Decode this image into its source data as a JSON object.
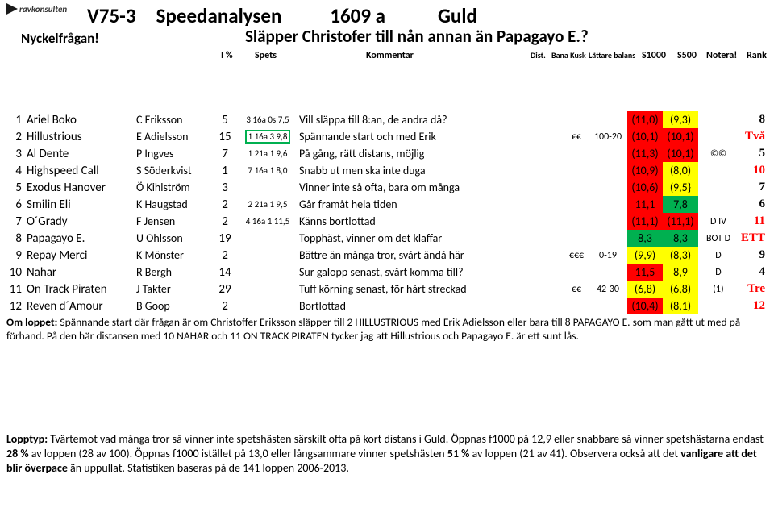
{
  "logo_text": "ravkonsulten",
  "title_race": "V75-3",
  "title_label": "Speedanalysen",
  "title_dist": "1609 a",
  "title_class": "Guld",
  "nyckel": "Nyckelfrågan!",
  "question": "Släpper Christofer till nån annan än Papagayo E.?",
  "cols": {
    "ipc": "I %",
    "spets": "Spets",
    "komm": "Kommentar",
    "dist": "Dist.",
    "bana": "Bana Kusk",
    "latt": "Lättare balans",
    "s1000": "S1000",
    "s500": "S500",
    "notera": "Notera!",
    "rank": "Rank"
  },
  "colors": {
    "red": "#ff0000",
    "yellow": "#ffff00",
    "green": "#00b050"
  },
  "rows": [
    {
      "n": "1",
      "horse": "Ariel Boko",
      "driver": "C Eriksson",
      "ipc": "5",
      "spets": "3 16a 0s 7,5",
      "spets_box": false,
      "komm": "Vill släppa till 8:an, de andra då?",
      "dist": "",
      "bana": "",
      "s1000": "(11,0)",
      "s1000_bg": "red",
      "s500": "(9,3)",
      "s500_bg": "yel",
      "not": "",
      "rank": "8",
      "rank_red": false
    },
    {
      "n": "2",
      "horse": "Hillustrious",
      "driver": "E Adielsson",
      "ipc": "15",
      "spets": "1 16a 3  9,8",
      "spets_box": true,
      "komm": "Spännande start och med Erik",
      "dist": "€€",
      "bana": "100-20",
      "s1000": "(10,1)",
      "s1000_bg": "red",
      "s500": "(10,1)",
      "s500_bg": "red",
      "not": "",
      "rank": "Två",
      "rank_red": true
    },
    {
      "n": "3",
      "horse": "Al Dente",
      "driver": "P Ingves",
      "ipc": "7",
      "spets": "1 21a 1  9,6",
      "spets_box": false,
      "komm": "På gång, rätt distans, möjlig",
      "dist": "",
      "bana": "",
      "s1000": "(11,3)",
      "s1000_bg": "red",
      "s500": "(10,1)",
      "s500_bg": "red",
      "not": "©©",
      "rank": "5",
      "rank_red": false
    },
    {
      "n": "4",
      "horse": "Highspeed Call",
      "driver": "S Söderkvist",
      "ipc": "1",
      "spets": "7 16a 1  8,0",
      "spets_box": false,
      "komm": "Snabb ut men ska inte duga",
      "dist": "",
      "bana": "",
      "s1000": "(10,9)",
      "s1000_bg": "red",
      "s500": "(8,0)",
      "s500_bg": "yel",
      "not": "",
      "rank": "10",
      "rank_red": true
    },
    {
      "n": "5",
      "horse": "Exodus Hanover",
      "driver": "Ö Kihlström",
      "ipc": "3",
      "spets": "",
      "spets_box": false,
      "komm": "Vinner inte så ofta, bara om många",
      "dist": "",
      "bana": "",
      "s1000": "(10,6)",
      "s1000_bg": "red",
      "s500": "(9,5}",
      "s500_bg": "yel",
      "not": "",
      "rank": "7",
      "rank_red": false
    },
    {
      "n": "6",
      "horse": "Smilin Eli",
      "driver": "K Haugstad",
      "ipc": "2",
      "spets": "2 21a 1  9,5",
      "spets_box": false,
      "komm": "Går framåt hela tiden",
      "dist": "",
      "bana": "",
      "s1000": "11,1",
      "s1000_bg": "red",
      "s500": "7,8",
      "s500_bg": "grn",
      "not": "",
      "rank": "6",
      "rank_red": false
    },
    {
      "n": "7",
      "horse": "O´Grady",
      "driver": "F Jensen",
      "ipc": "2",
      "spets": "4 16a 1 11,5",
      "spets_box": false,
      "komm": "Känns bortlottad",
      "dist": "",
      "bana": "",
      "s1000": "(11,1)",
      "s1000_bg": "red",
      "s500": "(11,1)",
      "s500_bg": "red",
      "not": "D IV",
      "rank": "11",
      "rank_red": true
    },
    {
      "n": "8",
      "horse": "Papagayo E.",
      "driver": "U Ohlsson",
      "ipc": "19",
      "spets": "",
      "spets_box": false,
      "komm": "Topphäst, vinner om det klaffar",
      "dist": "",
      "bana": "",
      "s1000": "8,3",
      "s1000_bg": "grn",
      "s500": "8,3",
      "s500_bg": "grn",
      "not": "BOT D",
      "rank": "ETT",
      "rank_red": true
    },
    {
      "n": "9",
      "horse": "Repay Merci",
      "driver": "K Mönster",
      "ipc": "2",
      "spets": "",
      "spets_box": false,
      "komm": "Bättre än många tror, svårt ändå här",
      "dist": "€€€",
      "bana": "0-19",
      "s1000": "(9,9)",
      "s1000_bg": "yel",
      "s500": "(8,3)",
      "s500_bg": "yel",
      "not": "D",
      "rank": "9",
      "rank_red": false
    },
    {
      "n": "10",
      "horse": "Nahar",
      "driver": "R Bergh",
      "ipc": "14",
      "spets": "",
      "spets_box": false,
      "komm": "Sur galopp senast, svårt komma till?",
      "dist": "",
      "bana": "",
      "s1000": "11,5",
      "s1000_bg": "red",
      "s500": "8,9",
      "s500_bg": "yel",
      "not": "D",
      "rank": "4",
      "rank_red": false
    },
    {
      "n": "11",
      "horse": "On Track Piraten",
      "driver": "J Takter",
      "ipc": "29",
      "spets": "",
      "spets_box": false,
      "komm": "Tuff körning senast, för hårt streckad",
      "dist": "€€",
      "bana": "42-30",
      "s1000": "(6,8)",
      "s1000_bg": "yel",
      "s500": "(6,8)",
      "s500_bg": "yel",
      "not": "(1)",
      "rank": "Tre",
      "rank_red": true
    },
    {
      "n": "12",
      "horse": "Reven d´Amour",
      "driver": "B Goop",
      "ipc": "2",
      "spets": "",
      "spets_box": false,
      "komm": "Bortlottad",
      "dist": "",
      "bana": "",
      "s1000": "(10,4)",
      "s1000_bg": "red",
      "s500": "(8,1)",
      "s500_bg": "yel",
      "not": "",
      "rank": "12",
      "rank_red": true
    }
  ],
  "om_label": "Om loppet:",
  "om_text": " Spännande start där frågan är om Christoffer Eriksson släpper till 2 HILLUSTRIOUS med Erik Adielsson eller bara till 8 PAPAGAYO E. som man gått ut med på förhand. På den här distansen med 10 NAHAR och 11 ON TRACK PIRATEN tycker jag att Hillustrious och Papagayo E. är ett sunt lås.",
  "lopptyp_label": "Lopptyp:",
  "lopptyp_p1": " Tvärtemot vad många tror så vinner inte spetshästen särskilt ofta på kort distans i Guld. Öppnas f1000 på 12,9 eller snabbare så vinner spetshästarna endast ",
  "lopptyp_b1": "28 %",
  "lopptyp_p2": " av loppen (28 av 100). Öppnas f1000 istället på 13,0 eller långsammare vinner spetshästen ",
  "lopptyp_b2": "51 %",
  "lopptyp_p3": " av loppen (21 av 41). Observera också att det ",
  "lopptyp_b3": "vanligare att det blir överpace",
  "lopptyp_p4": " än uppullat. Statistiken baseras på de 141 loppen 2006-2013."
}
